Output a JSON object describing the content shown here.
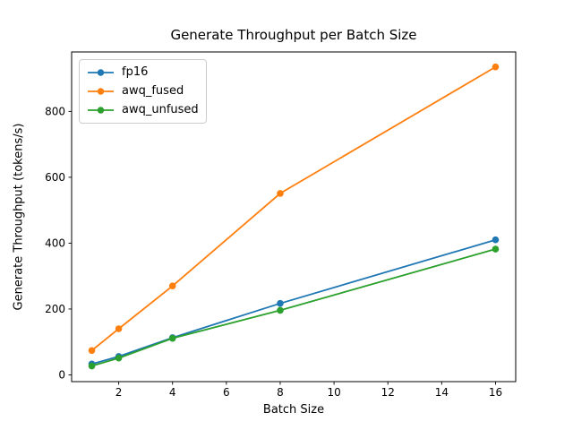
{
  "chart_data": {
    "type": "line",
    "title": "Generate Throughput per Batch Size",
    "xlabel": "Batch Size",
    "ylabel": "Generate Throughput (tokens/s)",
    "x": [
      1,
      2,
      4,
      8,
      16
    ],
    "series": [
      {
        "name": "fp16",
        "color": "#1f77b4",
        "values": [
          33,
          56,
          113,
          217,
          410
        ]
      },
      {
        "name": "awq_fused",
        "color": "#ff7f0e",
        "values": [
          74,
          140,
          270,
          551,
          935
        ]
      },
      {
        "name": "awq_unfused",
        "color": "#2ca02c",
        "values": [
          27,
          51,
          111,
          196,
          382
        ]
      }
    ],
    "x_tick_values": [
      2,
      4,
      6,
      8,
      10,
      12,
      14,
      16
    ],
    "x_tick_labels": [
      "2",
      "4",
      "6",
      "8",
      "10",
      "12",
      "14",
      "16"
    ],
    "y_tick_values": [
      0,
      200,
      400,
      600,
      800
    ],
    "y_tick_labels": [
      "0",
      "200",
      "400",
      "600",
      "800"
    ],
    "xlim": [
      0.25,
      16.75
    ],
    "ylim": [
      -20.5,
      980.5
    ],
    "grid": false,
    "legend_position": "upper-left",
    "marker": "circle",
    "axis_color": "#000000",
    "background_color": "#ffffff",
    "legend_border_color": "#cccccc"
  }
}
